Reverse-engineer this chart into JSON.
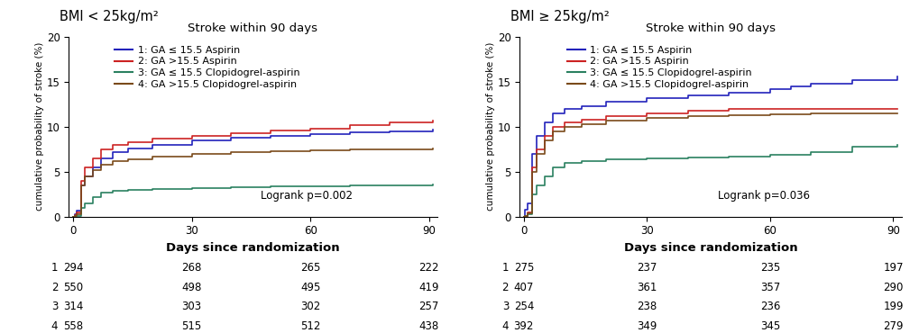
{
  "panel1_title": "Stroke within 90 days",
  "panel1_suptitle": "BMI < 25kg/m²",
  "panel2_title": "Stroke within 90 days",
  "panel2_suptitle": "BMI ≥ 25kg/m²",
  "ylabel": "cumulative probability of stroke (%)",
  "xlabel": "Days since randomization",
  "ylim": [
    0,
    20
  ],
  "xlim": [
    -1,
    92
  ],
  "xticks": [
    0,
    30,
    60,
    90
  ],
  "yticks": [
    0,
    5,
    10,
    15,
    20
  ],
  "colors": {
    "1": "#2222bb",
    "2": "#cc2222",
    "3": "#2a8060",
    "4": "#7a4a1a"
  },
  "legend_labels": [
    "1: GA ≤ 15.5 Aspirin",
    "2: GA >15.5 Aspirin",
    "3: GA ≤ 15.5 Clopidogrel-aspirin",
    "4: GA >15.5 Clopidogrel-aspirin"
  ],
  "logrank_p1": "Logrank p=0.002",
  "logrank_p2": "Logrank p=0.036",
  "at_risk_p1": {
    "labels": [
      "1",
      "2",
      "3",
      "4"
    ],
    "values": [
      [
        294,
        268,
        265,
        222
      ],
      [
        550,
        498,
        495,
        419
      ],
      [
        314,
        303,
        302,
        257
      ],
      [
        558,
        515,
        512,
        438
      ]
    ]
  },
  "at_risk_p2": {
    "labels": [
      "1",
      "2",
      "3",
      "4"
    ],
    "values": [
      [
        275,
        237,
        235,
        197
      ],
      [
        407,
        361,
        357,
        290
      ],
      [
        254,
        238,
        236,
        199
      ],
      [
        392,
        349,
        345,
        279
      ]
    ]
  },
  "panel1_curves": {
    "1": {
      "x": [
        0,
        0.5,
        1,
        2,
        3,
        5,
        7,
        10,
        14,
        20,
        30,
        40,
        50,
        60,
        70,
        80,
        91
      ],
      "y": [
        0,
        0.3,
        0.7,
        3.5,
        4.5,
        5.5,
        6.5,
        7.2,
        7.6,
        8.0,
        8.5,
        8.8,
        9.0,
        9.2,
        9.4,
        9.5,
        9.7
      ]
    },
    "2": {
      "x": [
        0,
        0.5,
        1,
        2,
        3,
        5,
        7,
        10,
        14,
        20,
        30,
        40,
        50,
        60,
        70,
        80,
        91
      ],
      "y": [
        0,
        0.2,
        0.5,
        4.0,
        5.5,
        6.5,
        7.5,
        8.0,
        8.3,
        8.7,
        9.0,
        9.3,
        9.6,
        9.8,
        10.2,
        10.5,
        10.7
      ]
    },
    "3": {
      "x": [
        0,
        0.5,
        1,
        2,
        3,
        5,
        7,
        10,
        14,
        20,
        30,
        40,
        50,
        60,
        70,
        80,
        91
      ],
      "y": [
        0,
        0.05,
        0.1,
        1.0,
        1.5,
        2.2,
        2.7,
        2.9,
        3.0,
        3.1,
        3.2,
        3.3,
        3.35,
        3.4,
        3.45,
        3.5,
        3.55
      ]
    },
    "4": {
      "x": [
        0,
        0.5,
        1,
        2,
        3,
        5,
        7,
        10,
        14,
        20,
        30,
        40,
        50,
        60,
        70,
        80,
        91
      ],
      "y": [
        0,
        0.1,
        0.3,
        3.5,
        4.5,
        5.2,
        5.8,
        6.2,
        6.4,
        6.7,
        7.0,
        7.2,
        7.3,
        7.4,
        7.45,
        7.5,
        7.55
      ]
    }
  },
  "panel2_curves": {
    "1": {
      "x": [
        0,
        0.3,
        1,
        2,
        3,
        5,
        7,
        10,
        14,
        20,
        30,
        40,
        50,
        60,
        65,
        70,
        80,
        91
      ],
      "y": [
        0,
        0.8,
        1.5,
        7.0,
        9.0,
        10.5,
        11.5,
        12.0,
        12.3,
        12.8,
        13.2,
        13.5,
        13.8,
        14.2,
        14.5,
        14.8,
        15.2,
        15.6
      ]
    },
    "2": {
      "x": [
        0,
        0.3,
        1,
        2,
        3,
        5,
        7,
        10,
        14,
        20,
        30,
        40,
        50,
        60,
        70,
        80,
        91
      ],
      "y": [
        0,
        0.1,
        0.5,
        5.5,
        7.5,
        9.0,
        10.0,
        10.5,
        10.8,
        11.2,
        11.5,
        11.8,
        12.0,
        12.0,
        12.0,
        12.0,
        12.0
      ]
    },
    "3": {
      "x": [
        0,
        0.3,
        1,
        2,
        3,
        5,
        7,
        10,
        14,
        20,
        30,
        40,
        50,
        60,
        70,
        80,
        91
      ],
      "y": [
        0,
        0.1,
        0.3,
        2.5,
        3.5,
        4.5,
        5.5,
        6.0,
        6.2,
        6.4,
        6.5,
        6.6,
        6.7,
        6.9,
        7.2,
        7.8,
        8.0
      ]
    },
    "4": {
      "x": [
        0,
        0.3,
        1,
        2,
        3,
        5,
        7,
        10,
        14,
        20,
        30,
        40,
        50,
        60,
        70,
        80,
        91
      ],
      "y": [
        0,
        0.1,
        0.4,
        5.0,
        7.0,
        8.5,
        9.5,
        10.0,
        10.3,
        10.7,
        11.0,
        11.2,
        11.3,
        11.4,
        11.5,
        11.5,
        11.5
      ]
    }
  }
}
